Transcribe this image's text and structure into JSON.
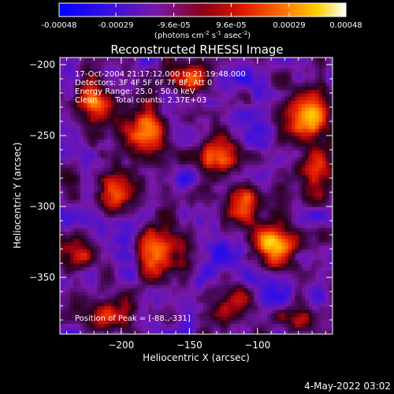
{
  "colorbar": {
    "tick_labels": [
      "-0.00048",
      "-0.00029",
      "-9.6e-05",
      "9.6e-05",
      "0.00029",
      "0.00048"
    ],
    "tick_values": [
      -0.00048,
      -0.00029,
      -9.6e-05,
      9.6e-05,
      0.00029,
      0.00048
    ],
    "range": [
      -0.00048,
      0.00048
    ],
    "units": "(photons cm",
    "units_parts": [
      "(photons cm",
      "-2",
      " s",
      "-1",
      " asec",
      "-2",
      ")"
    ]
  },
  "title": "Reconstructed RHESSI Image",
  "info": {
    "time_range": "17-Oct-2004 21:17:12.000 to 21:19:48.000",
    "detectors": "Detectors: 3F 4F 5F 6F 7F 8F, Att 0",
    "energy": "Energy Range: 25.0 - 50.0 keV",
    "algorithm": "Clean",
    "total_counts": "Total counts: 2.37E+03",
    "peak": "Position of Peak = [-88.,-331]"
  },
  "footer": {
    "date": "4-May-2022 03:02"
  },
  "chart_data": {
    "type": "heatmap",
    "title": "Reconstructed RHESSI Image",
    "xlabel": "Heliocentric X (arcsec)",
    "ylabel": "Heliocentric Y (arcsec)",
    "xlim": [
      -245,
      -45
    ],
    "ylim": [
      -390,
      -195
    ],
    "x_ticks": [
      -200,
      -150,
      -100
    ],
    "y_ticks": [
      -200,
      -250,
      -300,
      -350
    ],
    "x_tick_labels": [
      "−200",
      "−150",
      "−100"
    ],
    "y_tick_labels": [
      "−200",
      "−250",
      "−300",
      "−350"
    ],
    "colormap": "rhessi-heat",
    "value_range": [
      -0.00048,
      0.00048
    ],
    "peak_position": [
      -88,
      -331
    ],
    "bright_sources": [
      {
        "x": -88,
        "y": -331,
        "value": 0.00048
      },
      {
        "x": -182,
        "y": -247,
        "value": 0.0004
      },
      {
        "x": -65,
        "y": -238,
        "value": 0.00036
      },
      {
        "x": -220,
        "y": -232,
        "value": 0.0003
      },
      {
        "x": -203,
        "y": -292,
        "value": 0.00026
      },
      {
        "x": -175,
        "y": -335,
        "value": 0.0003
      },
      {
        "x": -130,
        "y": -265,
        "value": 0.00026
      },
      {
        "x": -110,
        "y": -300,
        "value": 0.00022
      },
      {
        "x": -60,
        "y": -275,
        "value": 0.00025
      },
      {
        "x": -150,
        "y": -210,
        "value": 0.00018
      },
      {
        "x": -235,
        "y": -335,
        "value": 0.0002
      },
      {
        "x": -120,
        "y": -370,
        "value": 0.00015
      },
      {
        "x": -70,
        "y": -385,
        "value": 0.0001
      },
      {
        "x": -215,
        "y": -378,
        "value": 0.00018
      }
    ],
    "dim_regions": [
      {
        "x": -130,
        "y": -330,
        "value": -0.00028
      },
      {
        "x": -160,
        "y": -290,
        "value": -0.00022
      },
      {
        "x": -100,
        "y": -215,
        "value": -0.0002
      },
      {
        "x": -200,
        "y": -320,
        "value": -0.00018
      },
      {
        "x": -160,
        "y": -370,
        "value": -0.00016
      },
      {
        "x": -85,
        "y": -360,
        "value": -0.00026
      }
    ]
  }
}
